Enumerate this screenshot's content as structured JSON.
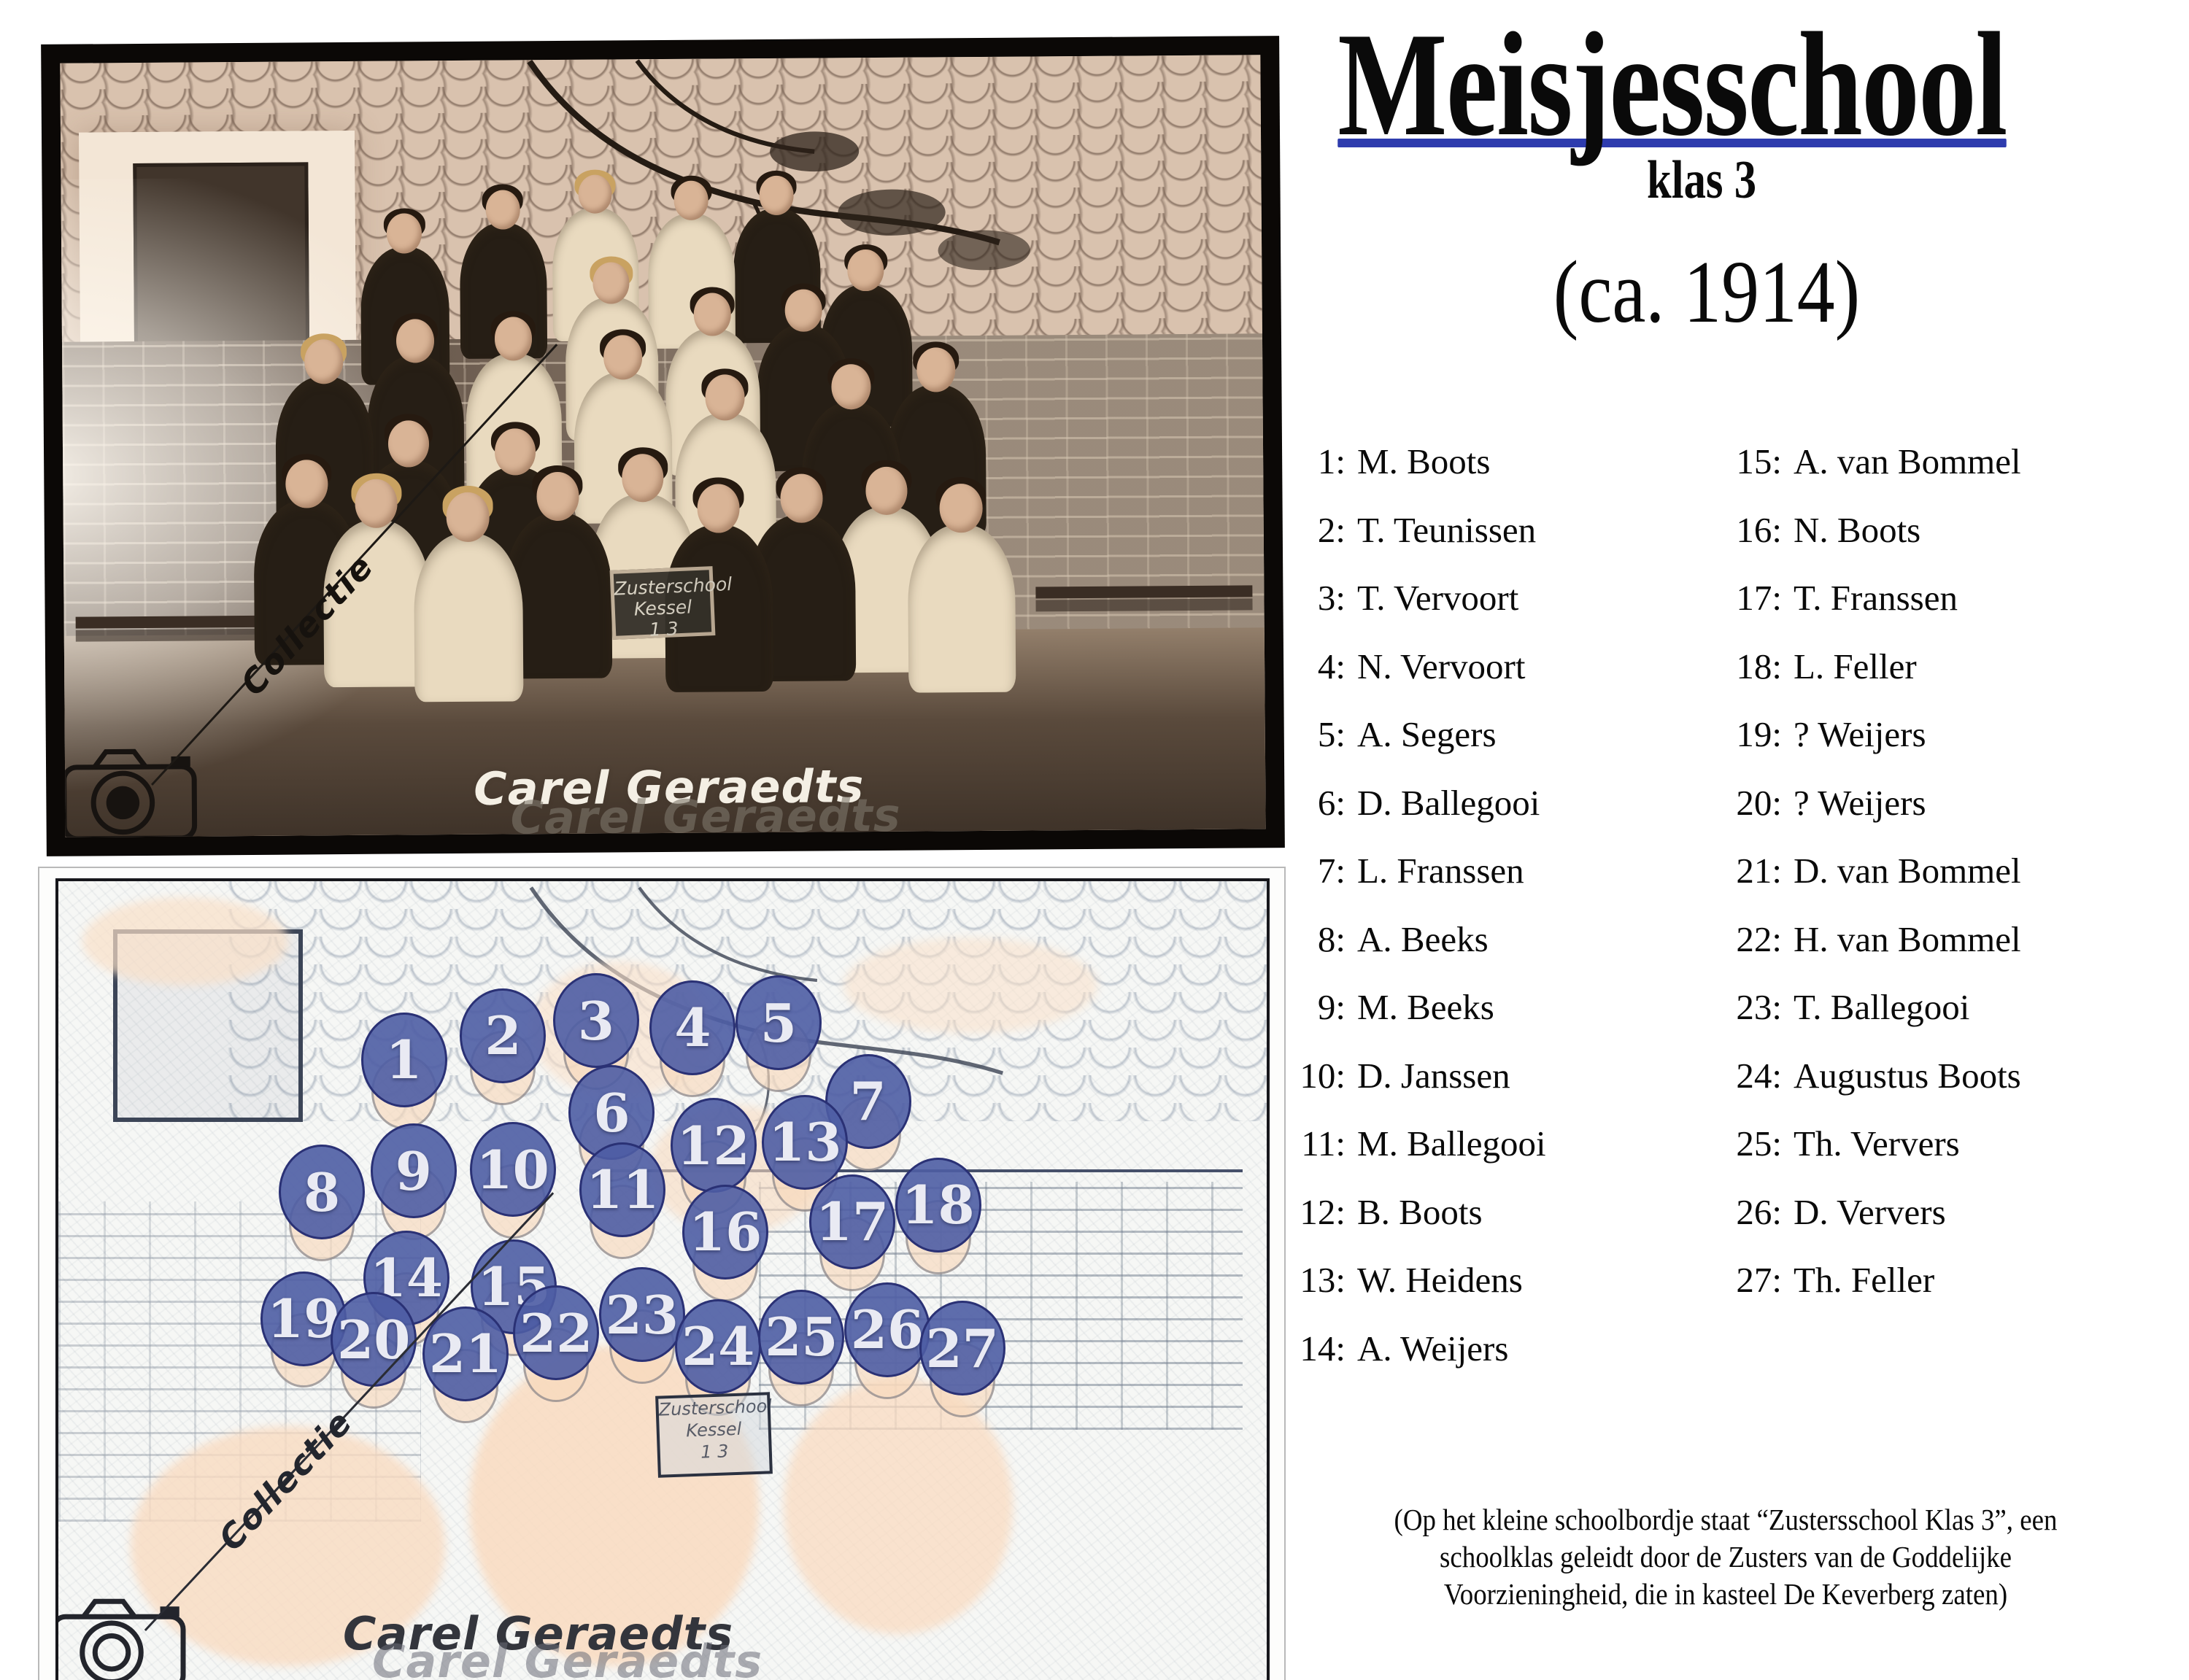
{
  "header": {
    "title": "Meisjesschool",
    "subtitle": "klas 3",
    "year": "(ca. 1914)"
  },
  "roster": {
    "left": [
      {
        "label": "1:",
        "name": "M. Boots"
      },
      {
        "label": "2:",
        "name": "T. Teunissen"
      },
      {
        "label": "3:",
        "name": "T. Vervoort"
      },
      {
        "label": "4:",
        "name": "N. Vervoort"
      },
      {
        "label": "5:",
        "name": "A. Segers"
      },
      {
        "label": "6:",
        "name": "D. Ballegooi"
      },
      {
        "label": "7:",
        "name": "L. Franssen"
      },
      {
        "label": "8:",
        "name": "A. Beeks"
      },
      {
        "label": "9:",
        "name": "M. Beeks"
      },
      {
        "label": "10:",
        "name": "D. Janssen"
      },
      {
        "label": "11:",
        "name": "M. Ballegooi"
      },
      {
        "label": "12:",
        "name": "B. Boots"
      },
      {
        "label": "13:",
        "name": "W. Heidens"
      },
      {
        "label": "14:",
        "name": "A. Weijers"
      }
    ],
    "right": [
      {
        "label": "15:",
        "name": "A. van Bommel"
      },
      {
        "label": "16:",
        "name": "N. Boots"
      },
      {
        "label": "17:",
        "name": "T. Franssen"
      },
      {
        "label": "18:",
        "name": "L. Feller"
      },
      {
        "label": "19:",
        "name": "? Weijers"
      },
      {
        "label": "20:",
        "name": "? Weijers"
      },
      {
        "label": "21:",
        "name": "D. van Bommel"
      },
      {
        "label": "22:",
        "name": "H. van Bommel"
      },
      {
        "label": "23:",
        "name": "T. Ballegooi"
      },
      {
        "label": "24:",
        "name": "Augustus Boots"
      },
      {
        "label": "25:",
        "name": "Th. Ververs"
      },
      {
        "label": "26:",
        "name": "D. Ververs"
      },
      {
        "label": "27:",
        "name": "Th. Feller"
      }
    ]
  },
  "caption": "(Op het kleine schoolbordje staat “Zustersschool Klas 3”, een\nschoolklas geleidt door de Zusters van de Goddelijke\nVoorzieningheid, die in kasteel De Keverberg zaten)",
  "watermark": {
    "collection": "Collectie",
    "name": "Carel Geraedts",
    "name_ghost": "Carel Geraedts"
  },
  "blackboard_text": "Zusterschool\nKessel\n1 3",
  "colors": {
    "title_underline": "#2e3cae",
    "circle_fill": "rgba(78,93,164,0.9)",
    "circle_border": "#2a3175",
    "circle_number": "#e9eaf3",
    "photo_sepia": "#ecd9c6",
    "sketch_paper": "#f6f7f5"
  },
  "markers": [
    {
      "n": 1,
      "x": 28.6,
      "y": 22.3,
      "dress": "dark",
      "hair": "dark"
    },
    {
      "n": 2,
      "x": 36.8,
      "y": 19.3,
      "dress": "dark",
      "hair": "dark"
    },
    {
      "n": 3,
      "x": 44.5,
      "y": 17.4,
      "dress": "light",
      "hair": "blonde"
    },
    {
      "n": 4,
      "x": 52.5,
      "y": 18.3,
      "dress": "light",
      "hair": "dark"
    },
    {
      "n": 5,
      "x": 59.6,
      "y": 17.7,
      "dress": "dark",
      "hair": "dark"
    },
    {
      "n": 6,
      "x": 45.8,
      "y": 28.9,
      "dress": "light",
      "hair": "blonde"
    },
    {
      "n": 7,
      "x": 67.0,
      "y": 27.5,
      "dress": "dark",
      "hair": "dark"
    },
    {
      "n": 8,
      "x": 21.8,
      "y": 38.8,
      "dress": "dark",
      "hair": "blonde"
    },
    {
      "n": 9,
      "x": 29.4,
      "y": 36.2,
      "dress": "dark",
      "hair": "dark"
    },
    {
      "n": 10,
      "x": 37.6,
      "y": 36.0,
      "dress": "light",
      "hair": "dark"
    },
    {
      "n": 11,
      "x": 46.7,
      "y": 38.5,
      "dress": "light",
      "hair": "dark"
    },
    {
      "n": 12,
      "x": 54.2,
      "y": 33.0,
      "dress": "light",
      "hair": "dark"
    },
    {
      "n": 13,
      "x": 61.8,
      "y": 32.6,
      "dress": "dark",
      "hair": "dark"
    },
    {
      "n": 14,
      "x": 28.8,
      "y": 49.5,
      "dress": "dark",
      "hair": "dark"
    },
    {
      "n": 15,
      "x": 37.7,
      "y": 50.6,
      "dress": "dark",
      "hair": "dark"
    },
    {
      "n": 16,
      "x": 55.2,
      "y": 43.8,
      "dress": "light",
      "hair": "dark"
    },
    {
      "n": 17,
      "x": 65.7,
      "y": 42.5,
      "dress": "dark",
      "hair": "dark"
    },
    {
      "n": 18,
      "x": 72.8,
      "y": 40.4,
      "dress": "dark",
      "hair": "dark"
    },
    {
      "n": 19,
      "x": 20.3,
      "y": 54.6,
      "dress": "dark",
      "hair": "dark"
    },
    {
      "n": 20,
      "x": 26.1,
      "y": 57.2,
      "dress": "light",
      "hair": "blonde"
    },
    {
      "n": 21,
      "x": 33.7,
      "y": 59.0,
      "dress": "light",
      "hair": "blonde"
    },
    {
      "n": 22,
      "x": 41.2,
      "y": 56.4,
      "dress": "dark",
      "hair": "dark"
    },
    {
      "n": 23,
      "x": 48.3,
      "y": 54.1,
      "dress": "light",
      "hair": "dark"
    },
    {
      "n": 24,
      "x": 54.6,
      "y": 58.1,
      "dress": "dark",
      "hair": "dark"
    },
    {
      "n": 25,
      "x": 61.5,
      "y": 56.9,
      "dress": "dark",
      "hair": "dark"
    },
    {
      "n": 26,
      "x": 68.6,
      "y": 56.0,
      "dress": "light",
      "hair": "dark"
    },
    {
      "n": 27,
      "x": 74.8,
      "y": 58.3,
      "dress": "light",
      "hair": "dark"
    }
  ]
}
